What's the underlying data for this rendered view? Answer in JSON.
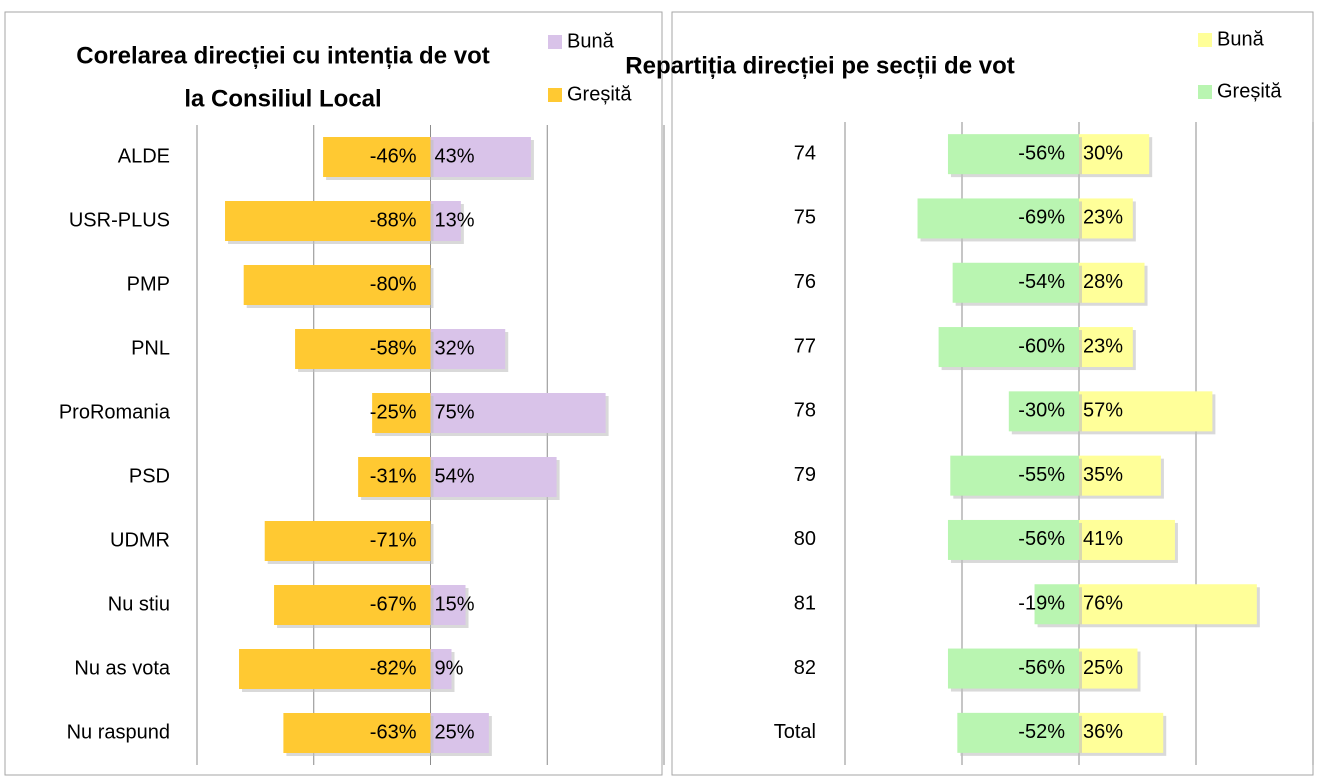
{
  "chart_data": [
    {
      "type": "diverging_bar",
      "title": [
        "Corelarea direcției cu intenția de vot",
        "la Consiliul Local"
      ],
      "categories": [
        "ALDE",
        "USR-PLUS",
        "PMP",
        "PNL",
        "ProRomania",
        "PSD",
        "UDMR",
        "Nu stiu",
        "Nu as vota",
        "Nu raspund"
      ],
      "series": [
        {
          "name": "Bună",
          "color": "#d9c3e9",
          "values": [
            43,
            13,
            null,
            32,
            75,
            54,
            null,
            15,
            9,
            25
          ],
          "value_labels": [
            "43%",
            "13%",
            null,
            "32%",
            "75%",
            "54%",
            null,
            "15%",
            "9%",
            "25%"
          ]
        },
        {
          "name": "Greșită",
          "color": "#ffc932",
          "values": [
            -46,
            -88,
            -80,
            -58,
            -25,
            -31,
            -71,
            -67,
            -82,
            -63
          ],
          "value_labels": [
            "-46%",
            "-88%",
            "-80%",
            "-58%",
            "-25%",
            "-31%",
            "-71%",
            "-67%",
            "-82%",
            "-63%"
          ]
        }
      ],
      "xlim": [
        -100,
        100
      ],
      "xticks": [
        -100,
        -50,
        0,
        50,
        100
      ],
      "grid": true,
      "legend": "upper right"
    },
    {
      "type": "diverging_bar",
      "title": [
        "Repartiția direcției pe secții de vot"
      ],
      "categories": [
        "74",
        "75",
        "76",
        "77",
        "78",
        "79",
        "80",
        "81",
        "82",
        "Total"
      ],
      "series": [
        {
          "name": "Bună",
          "color": "#ffff99",
          "values": [
            30,
            23,
            28,
            23,
            57,
            35,
            41,
            76,
            25,
            36
          ],
          "value_labels": [
            "30%",
            "23%",
            "28%",
            "23%",
            "57%",
            "35%",
            "41%",
            "76%",
            "25%",
            "36%"
          ]
        },
        {
          "name": "Greșită",
          "color": "#b9f5b1",
          "values": [
            -56,
            -69,
            -54,
            -60,
            -30,
            -55,
            -56,
            -19,
            -56,
            -52
          ],
          "value_labels": [
            "-56%",
            "-69%",
            "-54%",
            "-60%",
            "-30%",
            "-55%",
            "-56%",
            "-19%",
            "-56%",
            "-52%"
          ]
        }
      ],
      "xlim": [
        -100,
        100
      ],
      "xticks": [
        -100,
        -50,
        0,
        50,
        100
      ],
      "grid": true,
      "legend": "upper right"
    }
  ]
}
